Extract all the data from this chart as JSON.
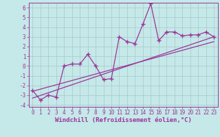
{
  "xlabel": "Windchill (Refroidissement éolien,°C)",
  "xlim": [
    -0.5,
    23.5
  ],
  "ylim": [
    -4.2,
    6.5
  ],
  "xticks": [
    0,
    1,
    2,
    3,
    4,
    5,
    6,
    7,
    8,
    9,
    10,
    11,
    12,
    13,
    14,
    15,
    16,
    17,
    18,
    19,
    20,
    21,
    22,
    23
  ],
  "yticks": [
    -4,
    -3,
    -2,
    -1,
    0,
    1,
    2,
    3,
    4,
    5,
    6
  ],
  "data_x": [
    0,
    1,
    2,
    3,
    4,
    5,
    6,
    7,
    8,
    9,
    10,
    11,
    12,
    13,
    14,
    15,
    16,
    17,
    18,
    19,
    20,
    21,
    22,
    23
  ],
  "data_y": [
    -2.5,
    -3.5,
    -3.0,
    -3.2,
    0.0,
    0.2,
    0.2,
    1.2,
    0.0,
    -1.4,
    -1.3,
    3.0,
    2.5,
    2.3,
    4.3,
    6.4,
    2.6,
    3.5,
    3.5,
    3.1,
    3.2,
    3.2,
    3.5,
    3.0
  ],
  "line1_x": [
    0,
    23
  ],
  "line1_y": [
    -3.3,
    3.0
  ],
  "line2_x": [
    0,
    23
  ],
  "line2_y": [
    -2.6,
    2.5
  ],
  "color": "#993399",
  "background_color": "#c5e8e8",
  "grid_color": "#a8c8c8",
  "marker": "+",
  "markersize": 4,
  "markeredgewidth": 1.0,
  "linewidth": 0.9,
  "xlabel_fontsize": 6.5,
  "tick_fontsize": 5.5
}
